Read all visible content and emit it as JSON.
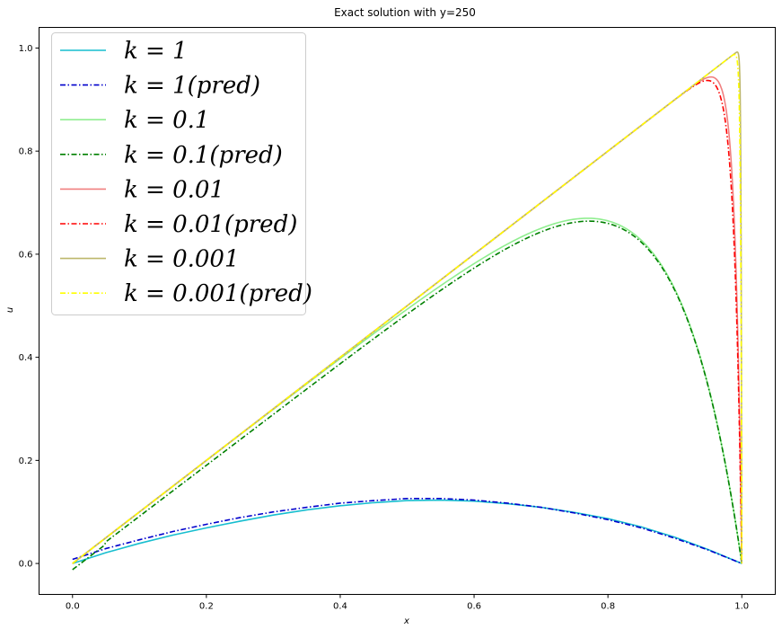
{
  "chart_data": {
    "type": "line",
    "title": "Exact solution with y=250",
    "xlabel": "x",
    "ylabel": "u",
    "xlim": [
      -0.05,
      1.05
    ],
    "ylim": [
      -0.06,
      1.04
    ],
    "xticks": [
      "0.0",
      "0.2",
      "0.4",
      "0.6",
      "0.8",
      "1.0"
    ],
    "yticks": [
      "0.0",
      "0.2",
      "0.4",
      "0.6",
      "0.8",
      "1.0"
    ],
    "legend_position": "upper-left",
    "grid": false,
    "series": [
      {
        "name": "k = 1",
        "color": "#17becf",
        "dash": "solid",
        "curve": "exact",
        "k": 1,
        "x": [
          0.0,
          0.05,
          0.1,
          0.15,
          0.2,
          0.25,
          0.3,
          0.35,
          0.4,
          0.45,
          0.5,
          0.55,
          0.6,
          0.65,
          0.7,
          0.75,
          0.8,
          0.85,
          0.9,
          0.95,
          1.0
        ],
        "y": [
          0.0,
          0.021,
          0.039,
          0.055,
          0.069,
          0.082,
          0.094,
          0.104,
          0.112,
          0.118,
          0.122,
          0.123,
          0.121,
          0.116,
          0.109,
          0.099,
          0.087,
          0.071,
          0.051,
          0.027,
          0.0
        ]
      },
      {
        "name": "k = 1(pred)",
        "color": "#0000cc",
        "dash": "dashdot",
        "curve": "pred",
        "k": 1,
        "x": [
          0.0,
          0.05,
          0.1,
          0.15,
          0.2,
          0.25,
          0.3,
          0.35,
          0.4,
          0.45,
          0.5,
          0.55,
          0.6,
          0.65,
          0.7,
          0.75,
          0.8,
          0.85,
          0.9,
          0.95,
          1.0
        ],
        "y": [
          0.008,
          0.029,
          0.046,
          0.062,
          0.076,
          0.089,
          0.1,
          0.109,
          0.117,
          0.122,
          0.126,
          0.126,
          0.123,
          0.117,
          0.109,
          0.098,
          0.085,
          0.069,
          0.049,
          0.026,
          0.0
        ]
      },
      {
        "name": "k = 0.1",
        "color": "#90ee90",
        "dash": "solid",
        "curve": "exact",
        "k": 0.1
      },
      {
        "name": "k = 0.1(pred)",
        "color": "#008000",
        "dash": "dashdot",
        "curve": "pred",
        "k": 0.1
      },
      {
        "name": "k = 0.01",
        "color": "#f08080",
        "dash": "solid",
        "curve": "exact",
        "k": 0.01
      },
      {
        "name": "k = 0.01(pred)",
        "color": "#ff0000",
        "dash": "dashdot",
        "curve": "pred",
        "k": 0.01
      },
      {
        "name": "k = 0.001",
        "color": "#bdb76b",
        "dash": "solid",
        "curve": "exact",
        "k": 0.001
      },
      {
        "name": "k = 0.001(pred)",
        "color": "#ffff00",
        "dash": "dashdot",
        "curve": "pred",
        "k": 0.001
      }
    ]
  },
  "legend": {
    "items": [
      {
        "label": "k = 1"
      },
      {
        "label": "k = 1(pred)"
      },
      {
        "label": "k = 0.1"
      },
      {
        "label": "k = 0.1(pred)"
      },
      {
        "label": "k = 0.01"
      },
      {
        "label": "k = 0.01(pred)"
      },
      {
        "label": "k = 0.001"
      },
      {
        "label": "k = 0.001(pred)"
      }
    ]
  }
}
